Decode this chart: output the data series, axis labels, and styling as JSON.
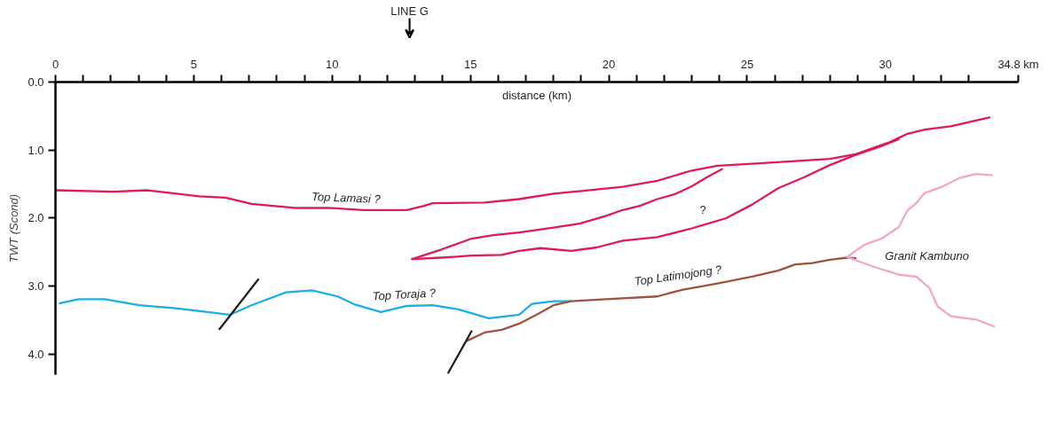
{
  "chart_data": {
    "type": "line",
    "xlabel": "distance (km)",
    "ylabel": "TWT (Scond)",
    "xlim": [
      0,
      34.8
    ],
    "ylim": [
      4.3,
      0
    ],
    "xticks": [
      0,
      {
        "value": 1,
        "label": null
      },
      {
        "value": 2,
        "label": null
      },
      {
        "value": 3,
        "label": null
      },
      {
        "value": 4,
        "label": null
      },
      5,
      {
        "value": 6,
        "label": null
      },
      {
        "value": 7,
        "label": null
      },
      {
        "value": 8,
        "label": null
      },
      {
        "value": 9,
        "label": null
      },
      10,
      {
        "value": 11,
        "label": null
      },
      {
        "value": 12,
        "label": null
      },
      {
        "value": 13,
        "label": null
      },
      {
        "value": 14,
        "label": null
      },
      15,
      {
        "value": 16,
        "label": null
      },
      {
        "value": 17,
        "label": null
      },
      {
        "value": 18,
        "label": null
      },
      {
        "value": 19,
        "label": null
      },
      20,
      {
        "value": 21,
        "label": null
      },
      {
        "value": 22,
        "label": null
      },
      {
        "value": 23,
        "label": null
      },
      {
        "value": 24,
        "label": null
      },
      25,
      {
        "value": 26,
        "label": null
      },
      {
        "value": 27,
        "label": null
      },
      {
        "value": 28,
        "label": null
      },
      {
        "value": 29,
        "label": null
      },
      30,
      {
        "value": 31,
        "label": null
      },
      {
        "value": 32,
        "label": null
      },
      {
        "value": 33,
        "label": null
      },
      {
        "value": 34.8,
        "label": "34.8 km"
      }
    ],
    "yticks": [
      {
        "value": 0,
        "label": "0.0"
      },
      {
        "value": 1,
        "label": "1.0"
      },
      {
        "value": 2,
        "label": "2.0"
      },
      {
        "value": 3,
        "label": "3.0"
      },
      {
        "value": 4,
        "label": "4.0"
      }
    ],
    "grid": false,
    "marker": "none",
    "line_style": "solid",
    "series": [
      {
        "color": "#e0185f",
        "x": [
          0,
          2.09,
          3.34,
          5.21,
          6.15,
          7.08,
          8.64,
          9.89,
          11.14,
          12.7,
          13.32,
          13.63,
          15.51,
          16.76,
          18.0,
          19.25,
          20.5,
          21.75,
          23.0,
          23.93,
          25.18,
          26.74,
          27.99,
          28.92,
          30.17,
          30.8,
          31.42,
          32.36,
          33.76
        ],
        "values": [
          1.59,
          1.61,
          1.59,
          1.68,
          1.7,
          1.79,
          1.85,
          1.85,
          1.88,
          1.88,
          1.82,
          1.78,
          1.77,
          1.72,
          1.64,
          1.59,
          1.54,
          1.45,
          1.3,
          1.23,
          1.2,
          1.16,
          1.13,
          1.06,
          0.88,
          0.76,
          0.7,
          0.65,
          0.52
        ]
      },
      {
        "color": "#e0185f",
        "x": [
          12.89,
          13.95,
          15.04,
          15.82,
          16.76,
          18.0,
          18.94,
          19.88,
          20.5,
          21.12,
          21.75,
          22.37,
          23.0,
          23.62,
          24.09
        ],
        "values": [
          2.6,
          2.46,
          2.3,
          2.25,
          2.21,
          2.14,
          2.08,
          1.97,
          1.88,
          1.82,
          1.72,
          1.65,
          1.53,
          1.38,
          1.28
        ]
      },
      {
        "color": "#e0185f",
        "x": [
          12.89,
          13.95,
          15.04,
          16.13,
          16.76,
          17.54,
          18.63,
          19.56,
          20.5,
          21.75,
          23.0,
          24.24,
          25.18,
          26.12,
          27.05,
          27.99,
          28.92,
          29.86,
          30.48
        ],
        "values": [
          2.6,
          2.58,
          2.55,
          2.54,
          2.48,
          2.44,
          2.48,
          2.43,
          2.33,
          2.28,
          2.15,
          2.0,
          1.8,
          1.56,
          1.4,
          1.22,
          1.07,
          0.94,
          0.84
        ]
      },
      {
        "color": "#1aaee8",
        "x": [
          0.16,
          0.84,
          1.78,
          3.03,
          4.28,
          5.52,
          6.3,
          7.08,
          8.33,
          9.27,
          10.2,
          10.83,
          11.76,
          12.7,
          13.63,
          14.57,
          15.66,
          16.76,
          17.22,
          18.0,
          18.63
        ],
        "values": [
          3.25,
          3.19,
          3.19,
          3.28,
          3.32,
          3.38,
          3.42,
          3.28,
          3.09,
          3.06,
          3.15,
          3.27,
          3.38,
          3.29,
          3.28,
          3.34,
          3.47,
          3.42,
          3.26,
          3.22,
          3.22
        ]
      },
      {
        "color": "#a0523d",
        "x": [
          14.88,
          15.51,
          16.13,
          16.76,
          17.38,
          18.0,
          18.63,
          19.88,
          21.75,
          22.68,
          23.93,
          25.18,
          26.12,
          26.74,
          27.36,
          27.99,
          28.61,
          28.92
        ],
        "values": [
          3.8,
          3.68,
          3.64,
          3.55,
          3.42,
          3.28,
          3.22,
          3.19,
          3.15,
          3.05,
          2.96,
          2.86,
          2.77,
          2.68,
          2.66,
          2.61,
          2.58,
          2.59
        ]
      },
      {
        "color": "#f2a6c8",
        "x": [
          28.61,
          29.24,
          29.86,
          30.48,
          30.8,
          31.11,
          31.42,
          32.04,
          32.67,
          33.29,
          33.85
        ],
        "values": [
          2.57,
          2.39,
          2.3,
          2.13,
          1.88,
          1.78,
          1.63,
          1.54,
          1.41,
          1.35,
          1.37
        ]
      },
      {
        "color": "#f2a6c8",
        "x": [
          28.61,
          29.55,
          30.48,
          31.11,
          31.58,
          31.89,
          32.36,
          33.29,
          33.92
        ],
        "values": [
          2.57,
          2.71,
          2.83,
          2.86,
          3.02,
          3.3,
          3.44,
          3.49,
          3.59
        ]
      },
      {
        "color": "#231f20",
        "x": [
          5.93,
          7.33
        ],
        "values": [
          3.63,
          2.9
        ]
      },
      {
        "color": "#231f20",
        "x": [
          14.2,
          15.04
        ],
        "values": [
          4.27,
          3.66
        ]
      }
    ],
    "annotations": [
      "Top Lamasi ?",
      "?",
      "Top Toraja ?",
      "Top Latimojong ?",
      "Granit Kambuno",
      "LINE G"
    ]
  }
}
